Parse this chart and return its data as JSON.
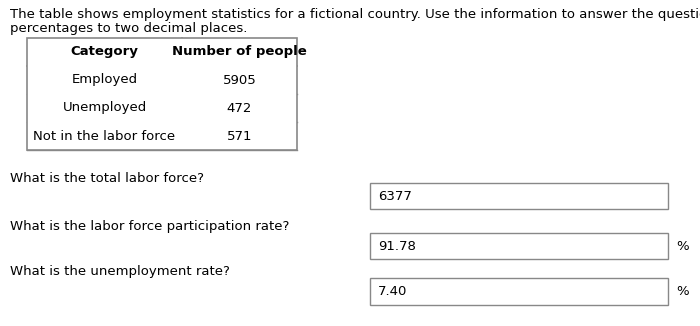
{
  "intro_line1": "The table shows employment statistics for a fictional country. Use the information to answer the questions. Round your",
  "intro_line2": "percentages to two decimal places.",
  "table_headers": [
    "Category",
    "Number of people"
  ],
  "table_rows": [
    [
      "Employed",
      "5905"
    ],
    [
      "Unemployed",
      "472"
    ],
    [
      "Not in the labor force",
      "571"
    ]
  ],
  "questions": [
    "What is the total labor force?",
    "What is the labor force participation rate?",
    "What is the unemployment rate?"
  ],
  "answers": [
    "6377",
    "91.78",
    "7.40"
  ],
  "has_percent": [
    false,
    true,
    true
  ],
  "bg_color": "#ffffff",
  "text_color": "#000000",
  "border_color": "#888888",
  "font_size": 9.5,
  "bold_font_size": 9.5
}
